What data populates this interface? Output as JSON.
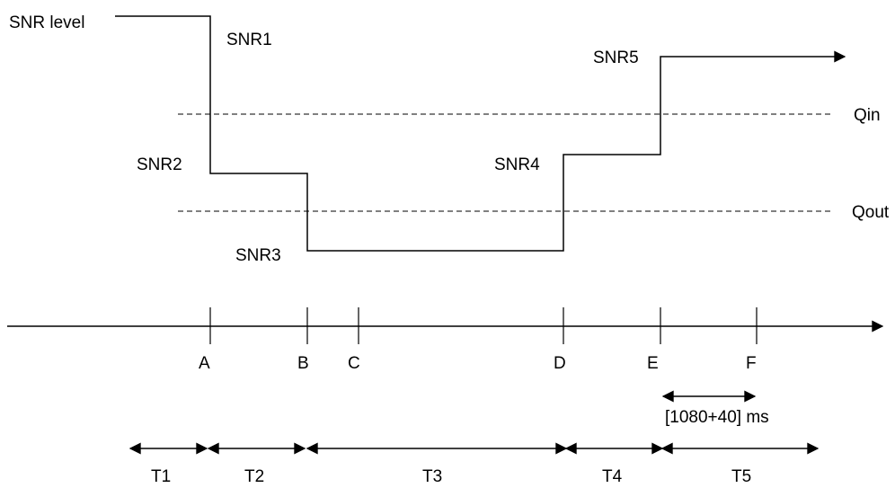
{
  "signal": {
    "label": "SNR level",
    "levels": [
      "SNR1",
      "SNR2",
      "SNR3",
      "SNR4",
      "SNR5"
    ]
  },
  "thresholds": {
    "qin": "Qin",
    "qout": "Qout"
  },
  "time_axis": {
    "events": [
      "A",
      "B",
      "C",
      "D",
      "E",
      "F"
    ]
  },
  "timer": {
    "label": "[1080+40] ms"
  },
  "periods": [
    "T1",
    "T2",
    "T3",
    "T4",
    "T5"
  ]
}
